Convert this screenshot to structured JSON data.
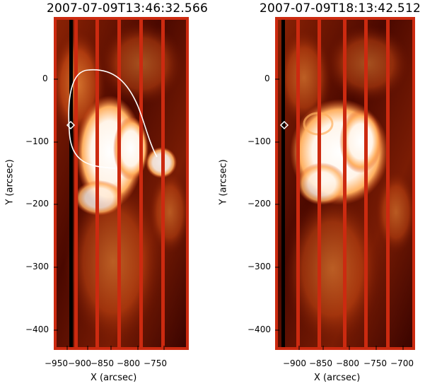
{
  "panels": [
    {
      "title": "2007-07-09T13:46:32.566",
      "xlabel": "X (arcsec)",
      "ylabel": "Y (arcsec)",
      "xticks": [
        "−950",
        "−900",
        "−850",
        "−800",
        "−750"
      ],
      "yticks": [
        "0",
        "−100",
        "−200",
        "−300",
        "−400"
      ],
      "has_contour": true
    },
    {
      "title": "2007-07-09T18:13:42.512",
      "xlabel": "X (arcsec)",
      "ylabel": "Y (arcsec)",
      "xticks": [
        "−900",
        "−850",
        "−800",
        "−750",
        "−700"
      ],
      "yticks": [
        "0",
        "−100",
        "−200",
        "−300",
        "−400"
      ],
      "has_contour": false
    }
  ],
  "colors": {
    "frame": "#cc2a10",
    "dark": "#3a0400",
    "mid": "#9a2a08",
    "bright": "#ff9a40",
    "hot": "#ffffff",
    "contour": "#ffffff"
  }
}
